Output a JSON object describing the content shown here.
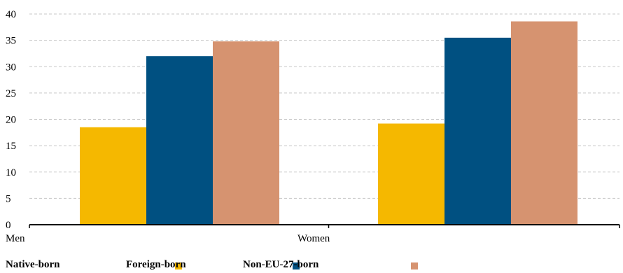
{
  "chart_data": {
    "type": "bar",
    "title": "",
    "xlabel": "",
    "ylabel": "",
    "categories": [
      "Men",
      "Women"
    ],
    "series": [
      {
        "name": "Native-born",
        "color": "#F5B800",
        "values": [
          18.5,
          19.2
        ]
      },
      {
        "name": "Foreign-born",
        "color": "#005081",
        "values": [
          32.0,
          35.5
        ]
      },
      {
        "name": "Non-EU-27-born",
        "color": "#D69370",
        "values": [
          34.8,
          38.6
        ]
      }
    ],
    "ylim": [
      0,
      40
    ],
    "yticks": [
      0,
      5,
      10,
      15,
      20,
      25,
      30,
      35,
      40
    ],
    "grid": true,
    "legend_position": "bottom"
  }
}
